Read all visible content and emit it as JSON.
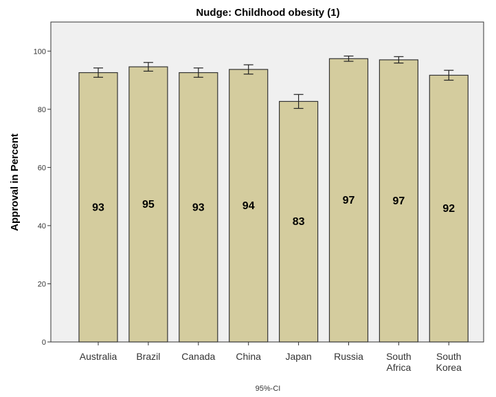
{
  "chart_data": {
    "type": "bar",
    "title": "Nudge: Childhood obesity (1)",
    "xlabel": "",
    "ylabel": "Approval in Percent",
    "footer": "95%-CI",
    "ylim": [
      0,
      110
    ],
    "yticks": [
      0,
      20,
      40,
      60,
      80,
      100
    ],
    "categories": [
      [
        "Australia"
      ],
      [
        "Brazil"
      ],
      [
        "Canada"
      ],
      [
        "China"
      ],
      [
        "Japan"
      ],
      [
        "Russia"
      ],
      [
        "South",
        "Africa"
      ],
      [
        "South",
        "Korea"
      ]
    ],
    "values": [
      92.6,
      94.6,
      92.6,
      93.7,
      82.7,
      97.4,
      97.0,
      91.7
    ],
    "value_labels": [
      "93",
      "95",
      "93",
      "94",
      "83",
      "97",
      "97",
      "92"
    ],
    "ci_low": [
      91.0,
      93.1,
      91.0,
      92.1,
      80.3,
      96.5,
      95.9,
      90.0
    ],
    "ci_high": [
      94.2,
      96.1,
      94.2,
      95.3,
      85.1,
      98.3,
      98.1,
      93.4
    ],
    "grid": false,
    "legend": "none",
    "colors": {
      "bar_fill": "#d4cc9e",
      "bar_stroke": "#333333",
      "plot_bg": "#f0f0f0",
      "axis": "#333333"
    }
  }
}
